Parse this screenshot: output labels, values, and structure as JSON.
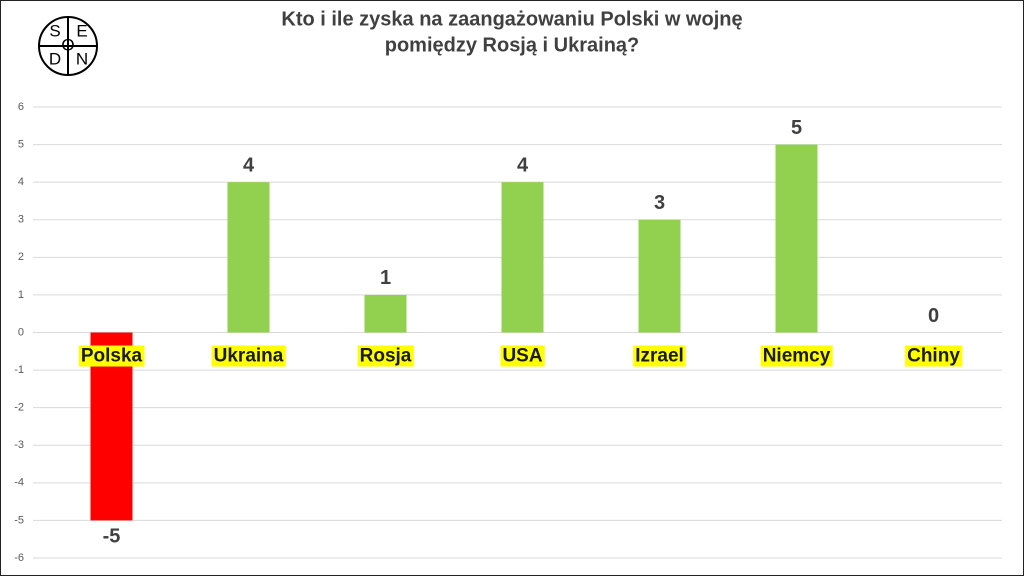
{
  "logo": [
    "S",
    "E",
    "O",
    "D",
    "N"
  ],
  "chart_data": {
    "type": "bar",
    "title": [
      "Kto i ile zyska na zaangażowaniu Polski w wojnę",
      "pomiędzy Rosją i Ukrainą?"
    ],
    "categories": [
      "Polska",
      "Ukraina",
      "Rosja",
      "USA",
      "Izrael",
      "Niemcy",
      "Chiny"
    ],
    "values": [
      -5,
      4,
      1,
      4,
      3,
      5,
      0
    ],
    "colors": [
      "#ff0000",
      "#92d050",
      "#92d050",
      "#92d050",
      "#92d050",
      "#92d050",
      "#92d050"
    ],
    "ylim": [
      -6,
      6
    ],
    "yticks": [
      -6,
      -5,
      -4,
      -3,
      -2,
      -1,
      0,
      1,
      2,
      3,
      4,
      5,
      6
    ],
    "grid": true
  }
}
